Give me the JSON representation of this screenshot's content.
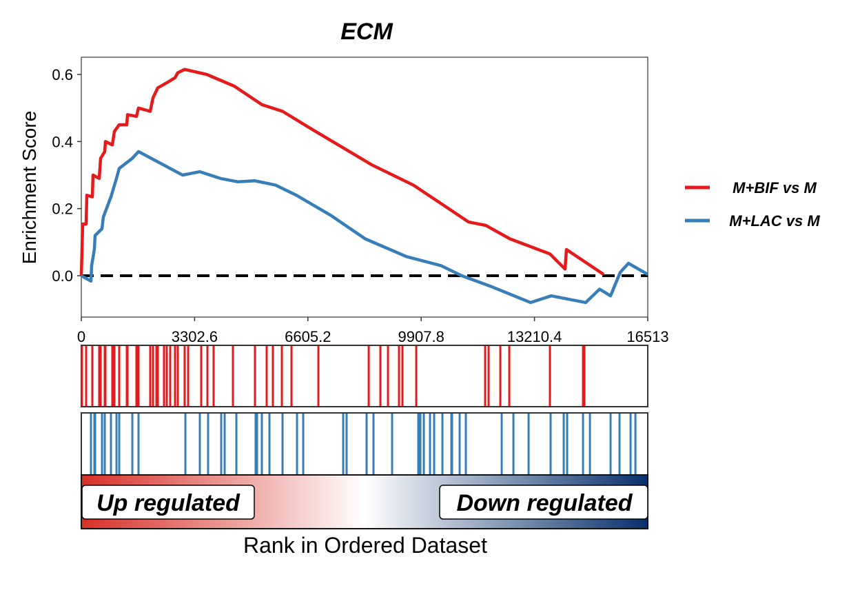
{
  "chart_data": {
    "type": "line",
    "title": "ECM",
    "xlabel": "Rank in Ordered Dataset",
    "ylabel": "Enrichment Score",
    "xlim": [
      0,
      16513
    ],
    "ylim": [
      -0.12,
      0.65
    ],
    "x_ticks": [
      "0",
      "3302.6",
      "6605.2",
      "9907.8",
      "13210.4",
      "16513"
    ],
    "x_tick_values": [
      0,
      3302.6,
      6605.2,
      9907.8,
      13210.4,
      16513
    ],
    "y_ticks": [
      "0.0",
      "0.2",
      "0.4",
      "0.6"
    ],
    "y_tick_values": [
      0,
      0.2,
      0.4,
      0.6
    ],
    "reference_line": 0,
    "legend_position": "right",
    "series": [
      {
        "name": "M+BIF vs M",
        "color": "#e41a1c",
        "x": [
          0,
          40,
          141,
          161,
          321,
          342,
          522,
          563,
          683,
          703,
          904,
          964,
          1105,
          1326,
          1346,
          1607,
          1667,
          2009,
          2089,
          2230,
          2491,
          2732,
          2812,
          3013,
          3656,
          4460,
          5264,
          5866,
          6670,
          8478,
          9683,
          11291,
          11793,
          12496,
          13661,
          14103,
          14143,
          15228
        ],
        "y": [
          0,
          0.154,
          0.154,
          0.24,
          0.235,
          0.3,
          0.29,
          0.35,
          0.37,
          0.4,
          0.39,
          0.43,
          0.45,
          0.45,
          0.48,
          0.475,
          0.5,
          0.49,
          0.53,
          0.56,
          0.575,
          0.59,
          0.605,
          0.615,
          0.6,
          0.565,
          0.51,
          0.49,
          0.44,
          0.33,
          0.27,
          0.16,
          0.15,
          0.11,
          0.065,
          0.02,
          0.078,
          0.004
        ],
        "hits": [
          20,
          141,
          321,
          522,
          563,
          683,
          703,
          904,
          964,
          1105,
          1326,
          1346,
          1607,
          1667,
          2009,
          2089,
          2190,
          2230,
          2411,
          2491,
          2591,
          2732,
          2812,
          3013,
          3114,
          3496,
          3676,
          3857,
          4420,
          5062,
          5404,
          5585,
          5846,
          6127,
          6911,
          8378,
          8719,
          8940,
          9261,
          9362,
          9764,
          11773,
          11873,
          12215,
          12476,
          13661,
          14626,
          14666
        ]
      },
      {
        "name": "M+LAC vs M",
        "color": "#377eb8",
        "x": [
          0,
          281,
          301,
          382,
          402,
          603,
          643,
          864,
          1025,
          1105,
          1487,
          1667,
          2953,
          3455,
          4058,
          4560,
          5063,
          5665,
          6268,
          7273,
          8277,
          9482,
          10487,
          11090,
          11893,
          13098,
          13701,
          14706,
          15108,
          15429,
          15710,
          15951,
          16513
        ],
        "y": [
          0,
          -0.016,
          0.03,
          0.08,
          0.12,
          0.14,
          0.175,
          0.235,
          0.29,
          0.32,
          0.35,
          0.37,
          0.3,
          0.31,
          0.29,
          0.28,
          0.283,
          0.27,
          0.24,
          0.18,
          0.11,
          0.057,
          0.03,
          0.0,
          -0.03,
          -0.08,
          -0.06,
          -0.08,
          -0.04,
          -0.06,
          0.01,
          0.037,
          0.004
        ],
        "hits": [
          281,
          382,
          402,
          603,
          683,
          864,
          1025,
          1105,
          1487,
          1667,
          3034,
          3455,
          3696,
          4078,
          4179,
          4520,
          5082,
          5123,
          5263,
          5484,
          5866,
          6288,
          6469,
          7634,
          7734,
          8317,
          8518,
          9060,
          9824,
          9884,
          9985,
          10166,
          10286,
          10527,
          10788,
          10808,
          11029,
          11210,
          12255,
          12597,
          13039,
          13681,
          14063,
          14163,
          14626,
          14827,
          15429,
          15690,
          16012,
          16153
        ]
      }
    ],
    "gradient_labels": {
      "up": "Up regulated",
      "down": "Down regulated"
    },
    "gradient_colors": [
      "#d73027",
      "#ffffff",
      "#08306b"
    ]
  }
}
